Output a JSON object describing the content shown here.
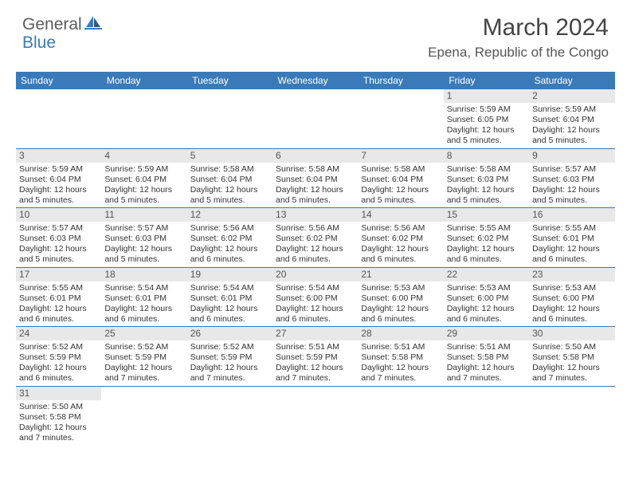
{
  "brand": {
    "part1": "General",
    "part2": "Blue"
  },
  "title": "March 2024",
  "location": "Epena, Republic of the Congo",
  "headerColor": "#3a7ab8",
  "weekdays": [
    "Sunday",
    "Monday",
    "Tuesday",
    "Wednesday",
    "Thursday",
    "Friday",
    "Saturday"
  ],
  "rows": [
    [
      null,
      null,
      null,
      null,
      null,
      {
        "n": "1",
        "sr": "5:59 AM",
        "ss": "6:05 PM",
        "dl": "12 hours and 5 minutes."
      },
      {
        "n": "2",
        "sr": "5:59 AM",
        "ss": "6:04 PM",
        "dl": "12 hours and 5 minutes."
      }
    ],
    [
      {
        "n": "3",
        "sr": "5:59 AM",
        "ss": "6:04 PM",
        "dl": "12 hours and 5 minutes."
      },
      {
        "n": "4",
        "sr": "5:59 AM",
        "ss": "6:04 PM",
        "dl": "12 hours and 5 minutes."
      },
      {
        "n": "5",
        "sr": "5:58 AM",
        "ss": "6:04 PM",
        "dl": "12 hours and 5 minutes."
      },
      {
        "n": "6",
        "sr": "5:58 AM",
        "ss": "6:04 PM",
        "dl": "12 hours and 5 minutes."
      },
      {
        "n": "7",
        "sr": "5:58 AM",
        "ss": "6:04 PM",
        "dl": "12 hours and 5 minutes."
      },
      {
        "n": "8",
        "sr": "5:58 AM",
        "ss": "6:03 PM",
        "dl": "12 hours and 5 minutes."
      },
      {
        "n": "9",
        "sr": "5:57 AM",
        "ss": "6:03 PM",
        "dl": "12 hours and 5 minutes."
      }
    ],
    [
      {
        "n": "10",
        "sr": "5:57 AM",
        "ss": "6:03 PM",
        "dl": "12 hours and 5 minutes."
      },
      {
        "n": "11",
        "sr": "5:57 AM",
        "ss": "6:03 PM",
        "dl": "12 hours and 5 minutes."
      },
      {
        "n": "12",
        "sr": "5:56 AM",
        "ss": "6:02 PM",
        "dl": "12 hours and 6 minutes."
      },
      {
        "n": "13",
        "sr": "5:56 AM",
        "ss": "6:02 PM",
        "dl": "12 hours and 6 minutes."
      },
      {
        "n": "14",
        "sr": "5:56 AM",
        "ss": "6:02 PM",
        "dl": "12 hours and 6 minutes."
      },
      {
        "n": "15",
        "sr": "5:55 AM",
        "ss": "6:02 PM",
        "dl": "12 hours and 6 minutes."
      },
      {
        "n": "16",
        "sr": "5:55 AM",
        "ss": "6:01 PM",
        "dl": "12 hours and 6 minutes."
      }
    ],
    [
      {
        "n": "17",
        "sr": "5:55 AM",
        "ss": "6:01 PM",
        "dl": "12 hours and 6 minutes."
      },
      {
        "n": "18",
        "sr": "5:54 AM",
        "ss": "6:01 PM",
        "dl": "12 hours and 6 minutes."
      },
      {
        "n": "19",
        "sr": "5:54 AM",
        "ss": "6:01 PM",
        "dl": "12 hours and 6 minutes."
      },
      {
        "n": "20",
        "sr": "5:54 AM",
        "ss": "6:00 PM",
        "dl": "12 hours and 6 minutes."
      },
      {
        "n": "21",
        "sr": "5:53 AM",
        "ss": "6:00 PM",
        "dl": "12 hours and 6 minutes."
      },
      {
        "n": "22",
        "sr": "5:53 AM",
        "ss": "6:00 PM",
        "dl": "12 hours and 6 minutes."
      },
      {
        "n": "23",
        "sr": "5:53 AM",
        "ss": "6:00 PM",
        "dl": "12 hours and 6 minutes."
      }
    ],
    [
      {
        "n": "24",
        "sr": "5:52 AM",
        "ss": "5:59 PM",
        "dl": "12 hours and 6 minutes."
      },
      {
        "n": "25",
        "sr": "5:52 AM",
        "ss": "5:59 PM",
        "dl": "12 hours and 7 minutes."
      },
      {
        "n": "26",
        "sr": "5:52 AM",
        "ss": "5:59 PM",
        "dl": "12 hours and 7 minutes."
      },
      {
        "n": "27",
        "sr": "5:51 AM",
        "ss": "5:59 PM",
        "dl": "12 hours and 7 minutes."
      },
      {
        "n": "28",
        "sr": "5:51 AM",
        "ss": "5:58 PM",
        "dl": "12 hours and 7 minutes."
      },
      {
        "n": "29",
        "sr": "5:51 AM",
        "ss": "5:58 PM",
        "dl": "12 hours and 7 minutes."
      },
      {
        "n": "30",
        "sr": "5:50 AM",
        "ss": "5:58 PM",
        "dl": "12 hours and 7 minutes."
      }
    ],
    [
      {
        "n": "31",
        "sr": "5:50 AM",
        "ss": "5:58 PM",
        "dl": "12 hours and 7 minutes."
      },
      null,
      null,
      null,
      null,
      null,
      null
    ]
  ],
  "labels": {
    "sunrise": "Sunrise: ",
    "sunset": "Sunset: ",
    "daylight": "Daylight: "
  }
}
